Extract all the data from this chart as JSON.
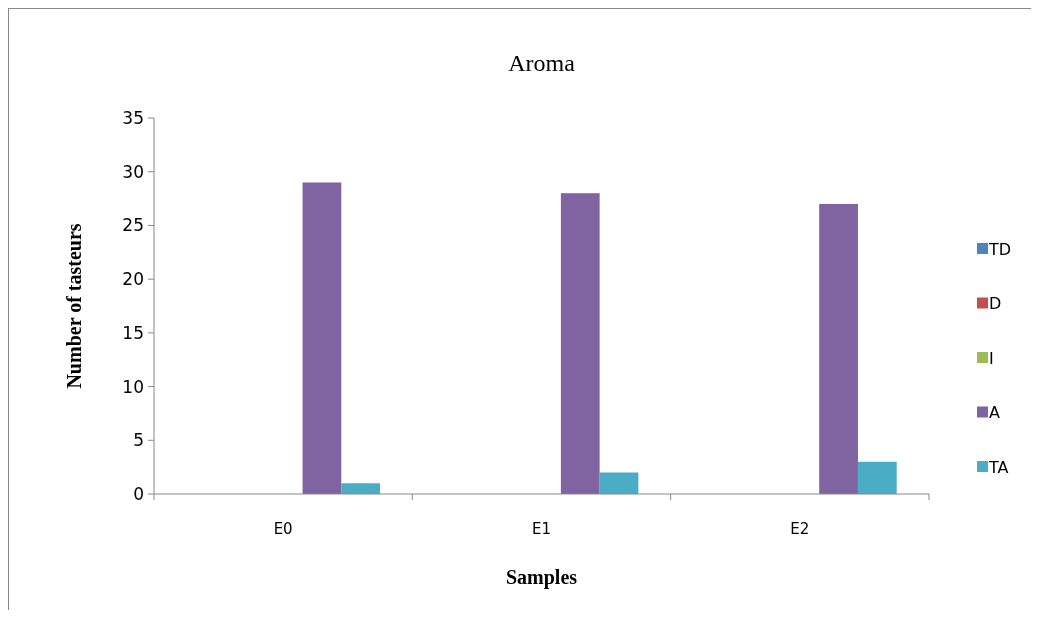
{
  "chart_data": {
    "type": "bar",
    "title": "Aroma",
    "xlabel": "Samples",
    "ylabel": "Number of tasteurs",
    "categories": [
      "E0",
      "E1",
      "E2"
    ],
    "series": [
      {
        "name": "TD",
        "color": "#4f81bd",
        "values": [
          0,
          0,
          0
        ]
      },
      {
        "name": "D",
        "color": "#c0504d",
        "values": [
          0,
          0,
          0
        ]
      },
      {
        "name": "I",
        "color": "#9bbb59",
        "values": [
          0,
          0,
          0
        ]
      },
      {
        "name": "A",
        "color": "#8064a2",
        "values": [
          29,
          28,
          27
        ]
      },
      {
        "name": "TA",
        "color": "#4bacc6",
        "values": [
          1,
          2,
          3
        ]
      }
    ],
    "ylim": [
      0,
      35
    ],
    "yticks": [
      0,
      5,
      10,
      15,
      20,
      25,
      30,
      35
    ],
    "grid": false,
    "legend": "right"
  }
}
